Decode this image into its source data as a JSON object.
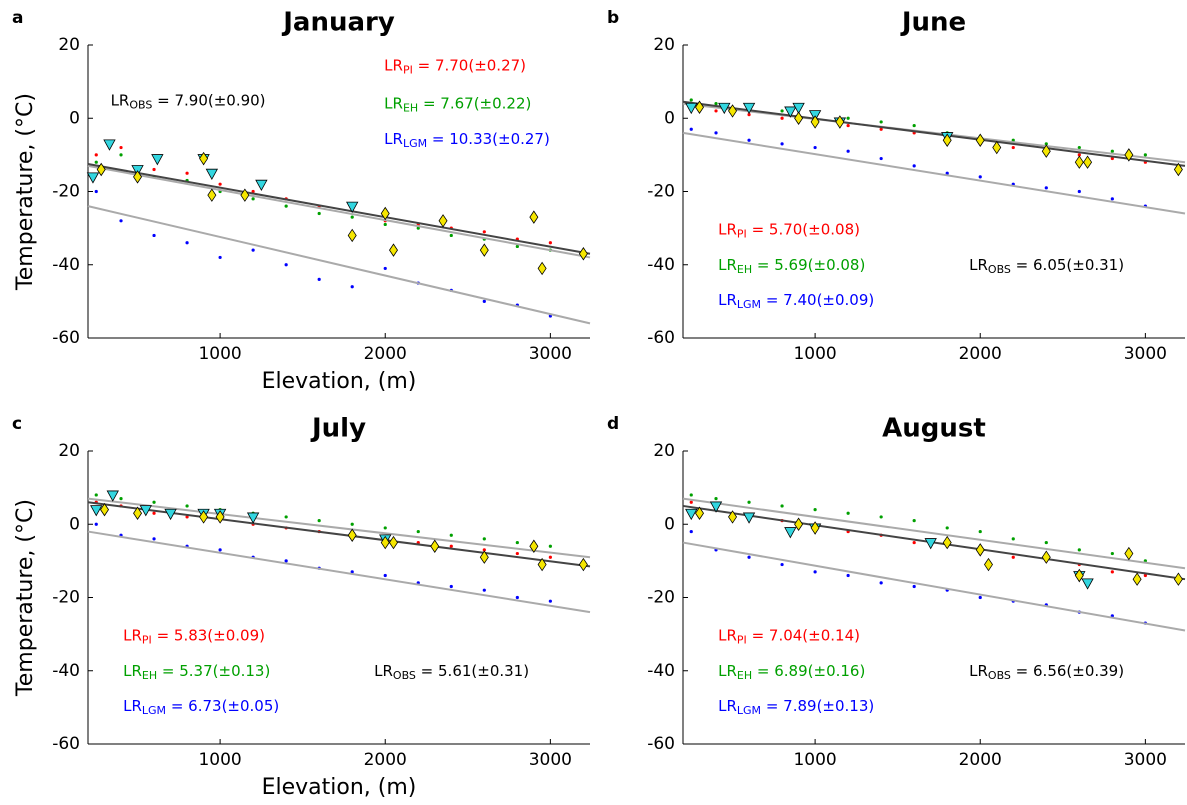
{
  "chart_data": [
    {
      "type": "scatter",
      "panel_label": "a",
      "title": "January",
      "xlabel": "Elevation, (m)",
      "ylabel": "Temperature, (°C)",
      "xlim": [
        200,
        3240
      ],
      "ylim": [
        -60,
        20
      ],
      "xticks": [
        1000,
        2000,
        3000
      ],
      "yticks": [
        -60,
        -40,
        -20,
        0,
        20
      ],
      "series": [
        {
          "color": "#ff0000",
          "marker": "dot",
          "x": [
            250,
            400,
            600,
            800,
            1000,
            1200,
            1400,
            1600,
            1800,
            2000,
            2200,
            2400,
            2600,
            2800,
            3000
          ],
          "values": [
            -10,
            -8,
            -14,
            -15,
            -18,
            -20,
            -22,
            -24,
            -25,
            -28,
            -29,
            -30,
            -31,
            -33,
            -34
          ]
        },
        {
          "color": "#00a000",
          "marker": "dot",
          "x": [
            250,
            400,
            600,
            800,
            1000,
            1200,
            1400,
            1600,
            1800,
            2000,
            2200,
            2400,
            2600,
            2800,
            3000
          ],
          "values": [
            -12,
            -10,
            -16,
            -17,
            -20,
            -22,
            -24,
            -26,
            -27,
            -29,
            -30,
            -32,
            -33,
            -35,
            -36
          ]
        },
        {
          "color": "#0000ff",
          "marker": "dot",
          "x": [
            250,
            400,
            600,
            800,
            1000,
            1200,
            1400,
            1600,
            1800,
            2000,
            2200,
            2400,
            2600,
            2800,
            3000
          ],
          "values": [
            -20,
            -28,
            -32,
            -34,
            -38,
            -36,
            -40,
            -44,
            -46,
            -41,
            -45,
            -47,
            -50,
            -51,
            -54
          ]
        },
        {
          "color": "#33d6e0",
          "marker": "triangle",
          "x": [
            230,
            330,
            500,
            620,
            900,
            950,
            1250,
            1800
          ],
          "values": [
            -16,
            -7,
            -14,
            -11,
            -11,
            -15,
            -18,
            -24
          ]
        },
        {
          "color": "#f5e600",
          "marker": "diamond",
          "x": [
            280,
            500,
            900,
            950,
            1150,
            1800,
            2000,
            2050,
            2350,
            2600,
            2900,
            2950,
            3200
          ],
          "values": [
            -14,
            -16,
            -11,
            -21,
            -21,
            -32,
            -26,
            -36,
            -28,
            -36,
            -27,
            -41,
            -37
          ]
        }
      ],
      "lines": [
        {
          "color": "#aaaaaa",
          "x": [
            200,
            3240
          ],
          "values": [
            -24,
            -56
          ]
        },
        {
          "color": "#aaaaaa",
          "x": [
            200,
            3240
          ],
          "values": [
            -13,
            -38
          ]
        },
        {
          "color": "#444444",
          "x": [
            200,
            3240
          ],
          "values": [
            -12.5,
            -37
          ]
        }
      ],
      "annotations": [
        {
          "color": "#000000",
          "base": "LR",
          "sub": "OBS",
          "text": " = 7.90(±0.90)"
        },
        {
          "color": "#ff0000",
          "base": "LR",
          "sub": "PI",
          "text": " = 7.70(±0.27)"
        },
        {
          "color": "#00a000",
          "base": "LR",
          "sub": "EH",
          "text": " = 7.67(±0.22)"
        },
        {
          "color": "#0000ff",
          "base": "LR",
          "sub": "LGM",
          "text": " = 10.33(±0.27)"
        }
      ]
    },
    {
      "type": "scatter",
      "panel_label": "b",
      "title": "June",
      "xlim": [
        200,
        3240
      ],
      "ylim": [
        -60,
        20
      ],
      "xticks": [
        1000,
        2000,
        3000
      ],
      "yticks": [
        -60,
        -40,
        -20,
        0,
        20
      ],
      "series": [
        {
          "color": "#ff0000",
          "marker": "dot",
          "x": [
            250,
            400,
            600,
            800,
            1000,
            1200,
            1400,
            1600,
            1800,
            2000,
            2200,
            2400,
            2600,
            2800,
            3000
          ],
          "values": [
            3,
            2,
            1,
            0,
            -1,
            -2,
            -3,
            -4,
            -6,
            -7,
            -8,
            -9,
            -10,
            -11,
            -12
          ]
        },
        {
          "color": "#00a000",
          "marker": "dot",
          "x": [
            250,
            400,
            600,
            800,
            1000,
            1200,
            1400,
            1600,
            1800,
            2000,
            2200,
            2400,
            2600,
            2800,
            3000
          ],
          "values": [
            5,
            4,
            3,
            2,
            1,
            0,
            -1,
            -2,
            -4,
            -5,
            -6,
            -7,
            -8,
            -9,
            -10
          ]
        },
        {
          "color": "#0000ff",
          "marker": "dot",
          "x": [
            250,
            400,
            600,
            800,
            1000,
            1200,
            1400,
            1600,
            1800,
            2000,
            2200,
            2400,
            2600,
            2800,
            3000
          ],
          "values": [
            -3,
            -4,
            -6,
            -7,
            -8,
            -9,
            -11,
            -13,
            -15,
            -16,
            -18,
            -19,
            -20,
            -22,
            -24
          ]
        },
        {
          "color": "#33d6e0",
          "marker": "triangle",
          "x": [
            250,
            450,
            600,
            850,
            900,
            1000,
            1150,
            1800
          ],
          "values": [
            3,
            3,
            3,
            2,
            3,
            1,
            -1,
            -5
          ]
        },
        {
          "color": "#f5e600",
          "marker": "diamond",
          "x": [
            300,
            500,
            900,
            1000,
            1150,
            1800,
            2000,
            2100,
            2400,
            2600,
            2650,
            2900,
            3200
          ],
          "values": [
            3,
            2,
            0,
            -1,
            -1,
            -6,
            -6,
            -8,
            -9,
            -12,
            -12,
            -10,
            -14
          ]
        }
      ],
      "lines": [
        {
          "color": "#aaaaaa",
          "x": [
            200,
            3240
          ],
          "values": [
            -4,
            -26
          ]
        },
        {
          "color": "#aaaaaa",
          "x": [
            200,
            3240
          ],
          "values": [
            4,
            -12
          ]
        },
        {
          "color": "#444444",
          "x": [
            200,
            3240
          ],
          "values": [
            4.5,
            -13
          ]
        }
      ],
      "annotations": [
        {
          "color": "#ff0000",
          "base": "LR",
          "sub": "PI",
          "text": " = 5.70(±0.08)"
        },
        {
          "color": "#00a000",
          "base": "LR",
          "sub": "EH",
          "text": " = 5.69(±0.08)"
        },
        {
          "color": "#0000ff",
          "base": "LR",
          "sub": "LGM",
          "text": " = 7.40(±0.09)"
        },
        {
          "color": "#000000",
          "base": "LR",
          "sub": "OBS",
          "text": " = 6.05(±0.31)"
        }
      ]
    },
    {
      "type": "scatter",
      "panel_label": "c",
      "title": "July",
      "xlabel": "Elevation, (m)",
      "ylabel": "Temperature, (°C)",
      "xlim": [
        200,
        3240
      ],
      "ylim": [
        -60,
        20
      ],
      "xticks": [
        1000,
        2000,
        3000
      ],
      "yticks": [
        -60,
        -40,
        -20,
        0,
        20
      ],
      "series": [
        {
          "color": "#ff0000",
          "marker": "dot",
          "x": [
            250,
            400,
            600,
            800,
            1000,
            1200,
            1400,
            1600,
            1800,
            2000,
            2200,
            2400,
            2600,
            2800,
            3000
          ],
          "values": [
            6,
            5,
            3,
            2,
            1,
            0,
            -1,
            -2,
            -3,
            -4,
            -5,
            -6,
            -7,
            -8,
            -9
          ]
        },
        {
          "color": "#00a000",
          "marker": "dot",
          "x": [
            250,
            400,
            600,
            800,
            1000,
            1200,
            1400,
            1600,
            1800,
            2000,
            2200,
            2400,
            2600,
            2800,
            3000
          ],
          "values": [
            8,
            7,
            6,
            5,
            4,
            3,
            2,
            1,
            0,
            -1,
            -2,
            -3,
            -4,
            -5,
            -6
          ]
        },
        {
          "color": "#0000ff",
          "marker": "dot",
          "x": [
            250,
            400,
            600,
            800,
            1000,
            1200,
            1400,
            1600,
            1800,
            2000,
            2200,
            2400,
            2600,
            2800,
            3000
          ],
          "values": [
            0,
            -3,
            -4,
            -6,
            -7,
            -9,
            -10,
            -12,
            -13,
            -14,
            -16,
            -17,
            -18,
            -20,
            -21
          ]
        },
        {
          "color": "#33d6e0",
          "marker": "triangle",
          "x": [
            250,
            350,
            550,
            700,
            900,
            1000,
            1200,
            2000
          ],
          "values": [
            4,
            8,
            4,
            3,
            3,
            3,
            2,
            -4
          ]
        },
        {
          "color": "#f5e600",
          "marker": "diamond",
          "x": [
            300,
            500,
            900,
            1000,
            1800,
            2000,
            2050,
            2300,
            2600,
            2900,
            2950,
            3200
          ],
          "values": [
            4,
            3,
            2,
            2,
            -3,
            -5,
            -5,
            -6,
            -9,
            -6,
            -11,
            -11
          ]
        }
      ],
      "lines": [
        {
          "color": "#aaaaaa",
          "x": [
            200,
            3240
          ],
          "values": [
            -2,
            -24
          ]
        },
        {
          "color": "#aaaaaa",
          "x": [
            200,
            3240
          ],
          "values": [
            7,
            -9
          ]
        },
        {
          "color": "#444444",
          "x": [
            200,
            3240
          ],
          "values": [
            6,
            -11.5
          ]
        }
      ],
      "annotations": [
        {
          "color": "#ff0000",
          "base": "LR",
          "sub": "PI",
          "text": " = 5.83(±0.09)"
        },
        {
          "color": "#00a000",
          "base": "LR",
          "sub": "EH",
          "text": " = 5.37(±0.13)"
        },
        {
          "color": "#0000ff",
          "base": "LR",
          "sub": "LGM",
          "text": " = 6.73(±0.05)"
        },
        {
          "color": "#000000",
          "base": "LR",
          "sub": "OBS",
          "text": " = 5.61(±0.31)"
        }
      ]
    },
    {
      "type": "scatter",
      "panel_label": "d",
      "title": "August",
      "xlim": [
        200,
        3240
      ],
      "ylim": [
        -60,
        20
      ],
      "xticks": [
        1000,
        2000,
        3000
      ],
      "yticks": [
        -60,
        -40,
        -20,
        0,
        20
      ],
      "series": [
        {
          "color": "#ff0000",
          "marker": "dot",
          "x": [
            250,
            400,
            600,
            800,
            1000,
            1200,
            1400,
            1600,
            1800,
            2000,
            2200,
            2400,
            2600,
            2800,
            3000
          ],
          "values": [
            6,
            4,
            2,
            1,
            0,
            -2,
            -3,
            -5,
            -6,
            -8,
            -9,
            -10,
            -11,
            -13,
            -14
          ]
        },
        {
          "color": "#00a000",
          "marker": "dot",
          "x": [
            250,
            400,
            600,
            800,
            1000,
            1200,
            1400,
            1600,
            1800,
            2000,
            2200,
            2400,
            2600,
            2800,
            3000
          ],
          "values": [
            8,
            7,
            6,
            5,
            4,
            3,
            2,
            1,
            -1,
            -2,
            -4,
            -5,
            -7,
            -8,
            -10
          ]
        },
        {
          "color": "#0000ff",
          "marker": "dot",
          "x": [
            250,
            400,
            600,
            800,
            1000,
            1200,
            1400,
            1600,
            1800,
            2000,
            2200,
            2400,
            2600,
            2800,
            3000
          ],
          "values": [
            -2,
            -7,
            -9,
            -11,
            -13,
            -14,
            -16,
            -17,
            -18,
            -20,
            -21,
            -22,
            -24,
            -25,
            -27
          ]
        },
        {
          "color": "#33d6e0",
          "marker": "triangle",
          "x": [
            250,
            400,
            600,
            850,
            1000,
            1700,
            2600,
            2650
          ],
          "values": [
            3,
            5,
            2,
            -2,
            -1,
            -5,
            -14,
            -16
          ]
        },
        {
          "color": "#f5e600",
          "marker": "diamond",
          "x": [
            300,
            500,
            900,
            1000,
            1800,
            2000,
            2050,
            2400,
            2600,
            2900,
            2950,
            3200
          ],
          "values": [
            3,
            2,
            0,
            -1,
            -5,
            -7,
            -11,
            -9,
            -14,
            -8,
            -15,
            -15
          ]
        }
      ],
      "lines": [
        {
          "color": "#aaaaaa",
          "x": [
            200,
            3240
          ],
          "values": [
            -5,
            -29
          ]
        },
        {
          "color": "#aaaaaa",
          "x": [
            200,
            3240
          ],
          "values": [
            7,
            -12
          ]
        },
        {
          "color": "#444444",
          "x": [
            200,
            3240
          ],
          "values": [
            5,
            -15
          ]
        }
      ],
      "annotations": [
        {
          "color": "#ff0000",
          "base": "LR",
          "sub": "PI",
          "text": " = 7.04(±0.14)"
        },
        {
          "color": "#00a000",
          "base": "LR",
          "sub": "EH",
          "text": " = 6.89(±0.16)"
        },
        {
          "color": "#0000ff",
          "base": "LR",
          "sub": "LGM",
          "text": " = 7.89(±0.13)"
        },
        {
          "color": "#000000",
          "base": "LR",
          "sub": "OBS",
          "text": " = 6.56(±0.39)"
        }
      ]
    }
  ]
}
